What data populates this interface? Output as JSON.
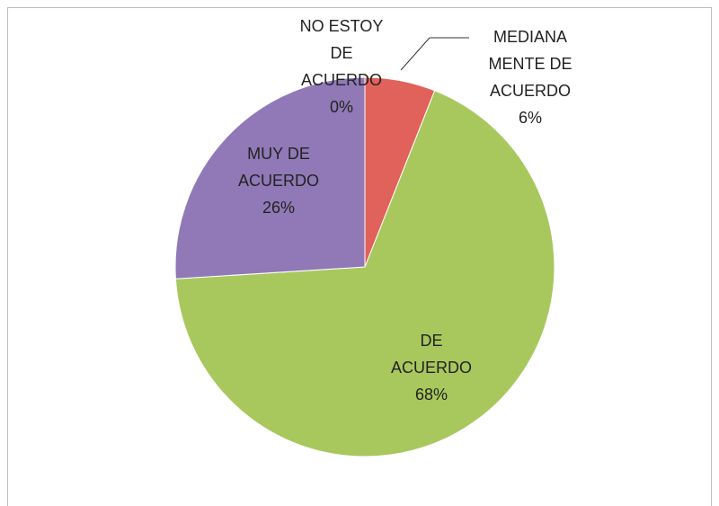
{
  "chart_data": {
    "type": "pie",
    "categories": [
      "NO ESTOY DE ACUERDO",
      "MEDIANAMENTE DE ACUERDO",
      "DE ACUERDO",
      "MUY DE ACUERDO"
    ],
    "values": [
      0,
      6,
      68,
      26
    ],
    "value_labels": [
      "0%",
      "6%",
      "68%",
      "26%"
    ],
    "colors": [
      "#4f81bd",
      "#e0625a",
      "#a8c85e",
      "#9079b6"
    ]
  }
}
